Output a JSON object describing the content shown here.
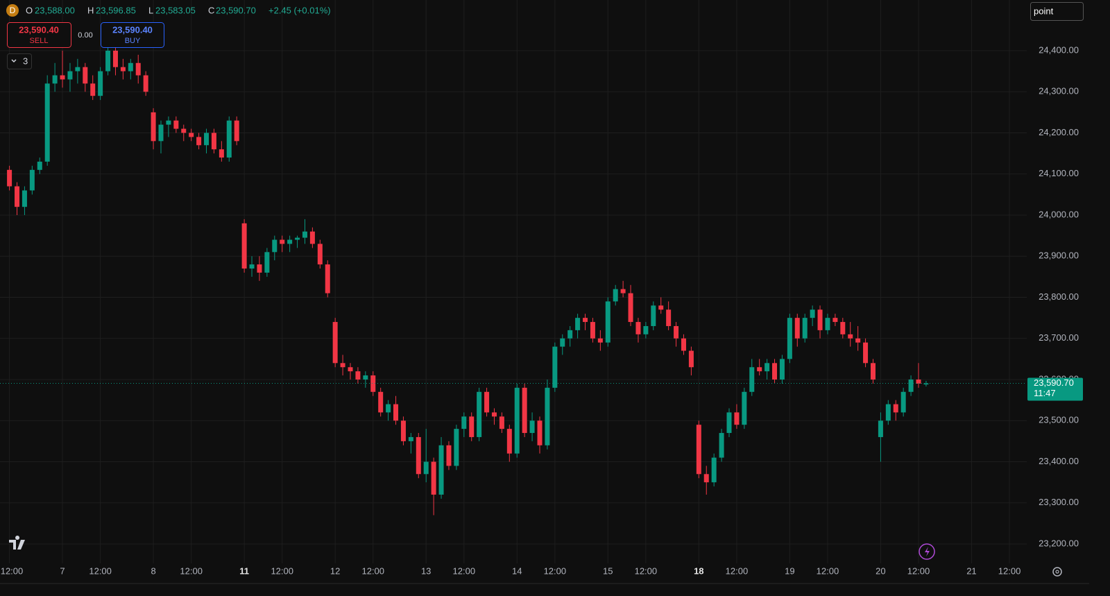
{
  "legend": {
    "symbol": "D",
    "items": [
      {
        "key": "O",
        "value": "23,588.00"
      },
      {
        "key": "H",
        "value": "23,596.85"
      },
      {
        "key": "L",
        "value": "23,583.05"
      },
      {
        "key": "C",
        "value": "23,590.70"
      }
    ],
    "change": "+2.45 (+0.01%)"
  },
  "trade": {
    "sell_price": "23,590.40",
    "sell": "SELL",
    "spread": "0.00",
    "buy_price": "23,590.40",
    "buy": "BUY"
  },
  "indicators_count": "3",
  "search": "point",
  "price_tag": {
    "label": "23,590.70",
    "countdown": "11:47"
  },
  "chart_data": {
    "type": "candlestick",
    "categories": [
      "12:00",
      null,
      null,
      null,
      null,
      null,
      null,
      "7",
      null,
      null,
      null,
      null,
      "12:00",
      null,
      null,
      null,
      null,
      null,
      null,
      "8",
      null,
      null,
      null,
      null,
      "12:00",
      null,
      null,
      null,
      null,
      null,
      null,
      "11",
      null,
      null,
      null,
      null,
      "12:00",
      null,
      null,
      null,
      null,
      null,
      null,
      "12",
      null,
      null,
      null,
      null,
      "12:00",
      null,
      null,
      null,
      null,
      null,
      null,
      "13",
      null,
      null,
      null,
      null,
      "12:00",
      null,
      null,
      null,
      null,
      null,
      null,
      "14",
      null,
      null,
      null,
      null,
      "12:00",
      null,
      null,
      null,
      null,
      null,
      null,
      "15",
      null,
      null,
      null,
      null,
      "12:00",
      null,
      null,
      null,
      null,
      null,
      null,
      "18",
      null,
      null,
      null,
      null,
      "12:00",
      null,
      null,
      null,
      null,
      null,
      null,
      "19",
      null,
      null,
      null,
      null,
      "12:00",
      null,
      null,
      null,
      null,
      null,
      null,
      "20",
      null,
      null,
      null,
      null,
      "12:00",
      null,
      null,
      null,
      null,
      null,
      null,
      "21",
      null,
      null,
      null,
      null,
      "12:00"
    ],
    "series": [
      {
        "up_color": "#089981",
        "down_color": "#f23645",
        "open": [
          24110,
          24070,
          24020,
          24060,
          24110,
          24130,
          24320,
          24340,
          24330,
          24350,
          24360,
          24320,
          24290,
          24350,
          24400,
          24360,
          24350,
          24370,
          24340,
          24250,
          24180,
          24220,
          24230,
          24210,
          24200,
          24190,
          24170,
          24200,
          24160,
          24140,
          24230,
          23980,
          23870,
          23880,
          23860,
          23910,
          23940,
          23930,
          23940,
          23945,
          23960,
          23930,
          23880,
          23740,
          23640,
          23630,
          23620,
          23600,
          23610,
          23570,
          23520,
          23540,
          23500,
          23450,
          23460,
          23370,
          23400,
          23320,
          23440,
          23390,
          23480,
          23510,
          23460,
          23570,
          23520,
          23510,
          23480,
          23420,
          23580,
          23470,
          23500,
          23440,
          23580,
          23680,
          23700,
          23720,
          23750,
          23740,
          23700,
          23690,
          23790,
          23820,
          23810,
          23740,
          23710,
          23730,
          23780,
          23770,
          23730,
          23700,
          23670,
          23490,
          23370,
          23350,
          23410,
          23470,
          23520,
          23490,
          23570,
          23630,
          23620,
          23640,
          23600,
          23650,
          23750,
          23700,
          23750,
          23770,
          23720,
          23750,
          23740,
          23710,
          23700,
          23690,
          23640,
          23460,
          23500,
          23540,
          23520,
          23570,
          23600,
          23588,
          null,
          null,
          null,
          null,
          null,
          null,
          null,
          null,
          null,
          null,
          null
        ],
        "high": [
          24120,
          24080,
          24070,
          24120,
          24140,
          24340,
          24370,
          24400,
          24370,
          24380,
          24370,
          24340,
          24360,
          24420,
          24410,
          24380,
          24380,
          24390,
          24350,
          24260,
          24230,
          24240,
          24240,
          24220,
          24210,
          24200,
          24210,
          24210,
          24180,
          24240,
          24240,
          23990,
          23900,
          23900,
          23920,
          23950,
          23950,
          23950,
          23950,
          23990,
          23970,
          23940,
          23890,
          23750,
          23660,
          23640,
          23630,
          23620,
          23620,
          23580,
          23550,
          23560,
          23510,
          23470,
          23470,
          23480,
          23410,
          23460,
          23450,
          23490,
          23520,
          23520,
          23580,
          23580,
          23530,
          23520,
          23490,
          23590,
          23590,
          23520,
          23510,
          23600,
          23690,
          23710,
          23730,
          23760,
          23760,
          23750,
          23720,
          23800,
          23830,
          23840,
          23830,
          23750,
          23740,
          23790,
          23800,
          23790,
          23740,
          23710,
          23680,
          23500,
          23390,
          23420,
          23480,
          23530,
          23540,
          23580,
          23650,
          23650,
          23650,
          23650,
          23660,
          23760,
          23760,
          23760,
          23780,
          23780,
          23760,
          23760,
          23750,
          23740,
          23730,
          23700,
          23650,
          23520,
          23550,
          23550,
          23580,
          23610,
          23640,
          23596.85,
          null,
          null,
          null,
          null,
          null,
          null,
          null,
          null,
          null,
          null,
          null
        ],
        "low": [
          24060,
          24000,
          24000,
          24050,
          24100,
          24120,
          24300,
          24310,
          24300,
          24320,
          24300,
          24280,
          24280,
          24340,
          24340,
          24330,
          24330,
          24320,
          24290,
          24160,
          24150,
          24190,
          24200,
          24180,
          24180,
          24160,
          24150,
          24150,
          24130,
          24130,
          24170,
          23860,
          23850,
          23840,
          23850,
          23890,
          23910,
          23910,
          23920,
          23930,
          23920,
          23870,
          23800,
          23630,
          23610,
          23600,
          23590,
          23580,
          23560,
          23510,
          23500,
          23490,
          23440,
          23420,
          23360,
          23350,
          23270,
          23310,
          23380,
          23380,
          23460,
          23450,
          23450,
          23510,
          23490,
          23470,
          23400,
          23410,
          23460,
          23450,
          23420,
          23430,
          23570,
          23660,
          23680,
          23700,
          23720,
          23690,
          23670,
          23680,
          23780,
          23800,
          23730,
          23690,
          23700,
          23720,
          23760,
          23720,
          23680,
          23660,
          23610,
          23360,
          23320,
          23340,
          23400,
          23460,
          23480,
          23480,
          23560,
          23610,
          23600,
          23590,
          23590,
          23640,
          23680,
          23690,
          23730,
          23700,
          23710,
          23730,
          23700,
          23680,
          23670,
          23630,
          23590,
          23400,
          23490,
          23500,
          23510,
          23560,
          23580,
          23583.05,
          null,
          null,
          null,
          null,
          null,
          null,
          null,
          null,
          null,
          null,
          null
        ],
        "close": [
          24070,
          24020,
          24060,
          24110,
          24130,
          24320,
          24340,
          24330,
          24350,
          24360,
          24320,
          24290,
          24350,
          24400,
          24360,
          24350,
          24370,
          24340,
          24300,
          24180,
          24220,
          24230,
          24210,
          24200,
          24190,
          24170,
          24200,
          24160,
          24140,
          24230,
          24180,
          23870,
          23880,
          23860,
          23910,
          23940,
          23930,
          23940,
          23945,
          23960,
          23930,
          23880,
          23810,
          23640,
          23630,
          23620,
          23600,
          23610,
          23570,
          23520,
          23540,
          23500,
          23450,
          23460,
          23370,
          23400,
          23320,
          23440,
          23390,
          23480,
          23510,
          23460,
          23570,
          23520,
          23510,
          23480,
          23420,
          23580,
          23470,
          23500,
          23440,
          23580,
          23680,
          23700,
          23720,
          23750,
          23740,
          23700,
          23690,
          23790,
          23820,
          23810,
          23740,
          23710,
          23730,
          23780,
          23770,
          23730,
          23700,
          23670,
          23630,
          23370,
          23350,
          23410,
          23470,
          23520,
          23490,
          23570,
          23630,
          23620,
          23640,
          23600,
          23650,
          23750,
          23700,
          23750,
          23770,
          23720,
          23750,
          23740,
          23710,
          23700,
          23690,
          23640,
          23600,
          23500,
          23540,
          23520,
          23570,
          23600,
          23590,
          23590.7,
          null,
          null,
          null,
          null,
          null,
          null,
          null,
          null,
          null,
          null,
          null
        ]
      }
    ],
    "ylim": [
      23159.5,
      24523.2
    ],
    "yticks": [
      {
        "value": 23200,
        "label": "23,200.00"
      },
      {
        "value": 23300,
        "label": "23,300.00"
      },
      {
        "value": 23400,
        "label": "23,400.00"
      },
      {
        "value": 23500,
        "label": "23,500.00"
      },
      {
        "value": 23600,
        "label": "23,600.00"
      },
      {
        "value": 23700,
        "label": "23,700.00"
      },
      {
        "value": 23800,
        "label": "23,800.00"
      },
      {
        "value": 23900,
        "label": "23,900.00"
      },
      {
        "value": 24000,
        "label": "24,000.00"
      },
      {
        "value": 24100,
        "label": "24,100.00"
      },
      {
        "value": 24200,
        "label": "24,200.00"
      },
      {
        "value": 24300,
        "label": "24,300.00"
      },
      {
        "value": 24400,
        "label": "24,400.00"
      }
    ],
    "grid": true
  }
}
